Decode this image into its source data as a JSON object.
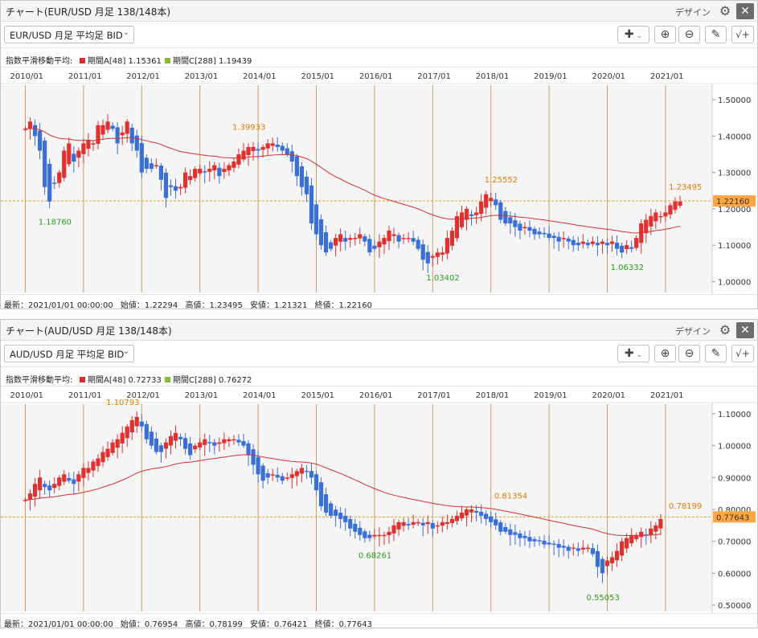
{
  "colors": {
    "up": "#e03030",
    "down": "#3a6fd8",
    "ma_a": "#d83030",
    "ma_c": "#88bb33",
    "high_label": "#e07a00",
    "low_label": "#2a9d1a",
    "year_line": "#c8a060",
    "plot_bg": "#f5f5f5",
    "last_box": "#ffa640"
  },
  "panels": [
    {
      "window_title": "チャート(EUR/USD 月足 138/148本)",
      "design_label": "デザイン",
      "gear_icon": "gear-icon",
      "close_icon": "close-icon",
      "symbol_select": "EUR/USD 月足 平均足 BID",
      "legend": {
        "title": "指数平滑移動平均:",
        "a_label": "期間A[48] 1.15361",
        "c_label": "期間C[288] 1.19439"
      },
      "footer": {
        "latest": "最新：2021/01/01 00:00:00",
        "open": "始値：1.22294",
        "high": "高値：1.23495",
        "low": "安値：1.21321",
        "close": "終値：1.22160"
      }
    },
    {
      "window_title": "チャート(AUD/USD 月足 138/148本)",
      "design_label": "デザイン",
      "gear_icon": "gear-icon",
      "close_icon": "close-icon",
      "symbol_select": "AUD/USD 月足 平均足 BID",
      "legend": {
        "title": "指数平滑移動平均:",
        "a_label": "期間A[48] 0.72733",
        "c_label": "期間C[288] 0.76272"
      },
      "footer": {
        "latest": "最新：2021/01/01 00:00:00",
        "open": "始値：0.76954",
        "high": "高値：0.78199",
        "low": "安値：0.76421",
        "close": "終値：0.77643"
      }
    }
  ],
  "chart_data": [
    {
      "type": "candlestick",
      "title": "EUR/USD 月足 平均足 BID",
      "x_tick_labels": [
        "2010/01",
        "2011/01",
        "2012/01",
        "2013/01",
        "2014/01",
        "2015/01",
        "2016/01",
        "2017/01",
        "2018/01",
        "2019/01",
        "2020/01",
        "2021/01"
      ],
      "y_tick_labels": [
        "1.50000",
        "1.40000",
        "1.30000",
        "1.20000",
        "1.10000",
        "1.00000"
      ],
      "ylim": [
        0.97,
        1.54
      ],
      "y_ticks": [
        1.5,
        1.4,
        1.3,
        1.2,
        1.1,
        1.0
      ],
      "current_price_label": "1.22160",
      "current_price": 1.2216,
      "series_close": [
        1.42,
        1.44,
        1.4,
        1.36,
        1.26,
        1.22,
        1.27,
        1.3,
        1.36,
        1.38,
        1.33,
        1.36,
        1.38,
        1.39,
        1.38,
        1.43,
        1.43,
        1.44,
        1.42,
        1.38,
        1.41,
        1.44,
        1.38,
        1.36,
        1.3,
        1.31,
        1.31,
        1.32,
        1.28,
        1.23,
        1.26,
        1.25,
        1.26,
        1.3,
        1.29,
        1.31,
        1.31,
        1.3,
        1.31,
        1.32,
        1.29,
        1.31,
        1.32,
        1.33,
        1.35,
        1.36,
        1.37,
        1.37,
        1.36,
        1.37,
        1.38,
        1.38,
        1.37,
        1.36,
        1.35,
        1.33,
        1.29,
        1.26,
        1.24,
        1.16,
        1.13,
        1.1,
        1.08,
        1.09,
        1.12,
        1.13,
        1.11,
        1.12,
        1.12,
        1.13,
        1.11,
        1.08,
        1.09,
        1.11,
        1.12,
        1.14,
        1.13,
        1.11,
        1.12,
        1.12,
        1.11,
        1.09,
        1.06,
        1.05,
        1.07,
        1.08,
        1.08,
        1.12,
        1.14,
        1.18,
        1.19,
        1.2,
        1.18,
        1.19,
        1.22,
        1.24,
        1.23,
        1.21,
        1.17,
        1.16,
        1.16,
        1.15,
        1.14,
        1.15,
        1.14,
        1.13,
        1.13,
        1.13,
        1.12,
        1.12,
        1.11,
        1.12,
        1.11,
        1.1,
        1.1,
        1.11,
        1.1,
        1.11,
        1.1,
        1.11,
        1.1,
        1.11,
        1.09,
        1.08,
        1.1,
        1.09,
        1.12,
        1.16,
        1.17,
        1.18,
        1.19,
        1.18,
        1.19,
        1.21,
        1.22,
        1.22
      ],
      "annotations": [
        {
          "label": "1.39933",
          "kind": "high",
          "value": 1.39933
        },
        {
          "label": "1.18760",
          "kind": "low",
          "value": 1.1876
        },
        {
          "label": "1.25552",
          "kind": "high",
          "value": 1.25552
        },
        {
          "label": "1.03402",
          "kind": "low",
          "value": 1.03402
        },
        {
          "label": "1.06332",
          "kind": "low",
          "value": 1.06332
        },
        {
          "label": "1.23495",
          "kind": "high",
          "value": 1.23495
        }
      ],
      "series": [
        {
          "name": "期間A[48]",
          "final": 1.15361
        }
      ]
    },
    {
      "type": "candlestick",
      "title": "AUD/USD 月足 平均足 BID",
      "x_tick_labels": [
        "2010/01",
        "2011/01",
        "2012/01",
        "2013/01",
        "2014/01",
        "2015/01",
        "2016/01",
        "2017/01",
        "2018/01",
        "2019/01",
        "2020/01",
        "2021/01"
      ],
      "y_tick_labels": [
        "1.10000",
        "1.00000",
        "0.90000",
        "0.80000",
        "0.70000",
        "0.60000",
        "0.50000"
      ],
      "ylim": [
        0.48,
        1.13
      ],
      "y_ticks": [
        1.1,
        1.0,
        0.9,
        0.8,
        0.7,
        0.6,
        0.5
      ],
      "current_price_label": "0.77643",
      "current_price": 0.77643,
      "series_close": [
        0.83,
        0.85,
        0.88,
        0.9,
        0.87,
        0.86,
        0.88,
        0.9,
        0.91,
        0.89,
        0.88,
        0.91,
        0.93,
        0.93,
        0.95,
        0.96,
        0.98,
        0.99,
        1.01,
        1.02,
        1.04,
        1.06,
        1.08,
        1.09,
        1.06,
        1.02,
        1.0,
        0.98,
        0.98,
        1.01,
        1.03,
        1.04,
        1.02,
        0.99,
        0.97,
        1.0,
        1.01,
        1.02,
        1.01,
        1.0,
        1.01,
        1.02,
        1.02,
        1.02,
        1.01,
        1.0,
        0.97,
        0.94,
        0.91,
        0.89,
        0.9,
        0.91,
        0.9,
        0.89,
        0.9,
        0.91,
        0.92,
        0.93,
        0.92,
        0.9,
        0.86,
        0.81,
        0.79,
        0.78,
        0.78,
        0.77,
        0.76,
        0.74,
        0.73,
        0.72,
        0.71,
        0.71,
        0.72,
        0.72,
        0.72,
        0.73,
        0.75,
        0.76,
        0.76,
        0.75,
        0.76,
        0.76,
        0.75,
        0.76,
        0.74,
        0.75,
        0.76,
        0.76,
        0.77,
        0.78,
        0.79,
        0.8,
        0.8,
        0.79,
        0.78,
        0.77,
        0.76,
        0.75,
        0.73,
        0.73,
        0.72,
        0.72,
        0.71,
        0.71,
        0.7,
        0.7,
        0.7,
        0.69,
        0.69,
        0.69,
        0.68,
        0.68,
        0.67,
        0.68,
        0.67,
        0.68,
        0.68,
        0.66,
        0.62,
        0.6,
        0.64,
        0.65,
        0.67,
        0.7,
        0.71,
        0.72,
        0.72,
        0.73,
        0.72,
        0.74,
        0.75,
        0.77
      ],
      "annotations": [
        {
          "label": "1.10793",
          "kind": "high",
          "value": 1.10793
        },
        {
          "label": "0.81354",
          "kind": "high",
          "value": 0.81354
        },
        {
          "label": "0.68261",
          "kind": "low",
          "value": 0.68261
        },
        {
          "label": "0.55053",
          "kind": "low",
          "value": 0.55053
        },
        {
          "label": "0.78199",
          "kind": "high",
          "value": 0.78199
        }
      ],
      "series": [
        {
          "name": "期間A[48]",
          "final": 0.72733
        }
      ]
    }
  ]
}
